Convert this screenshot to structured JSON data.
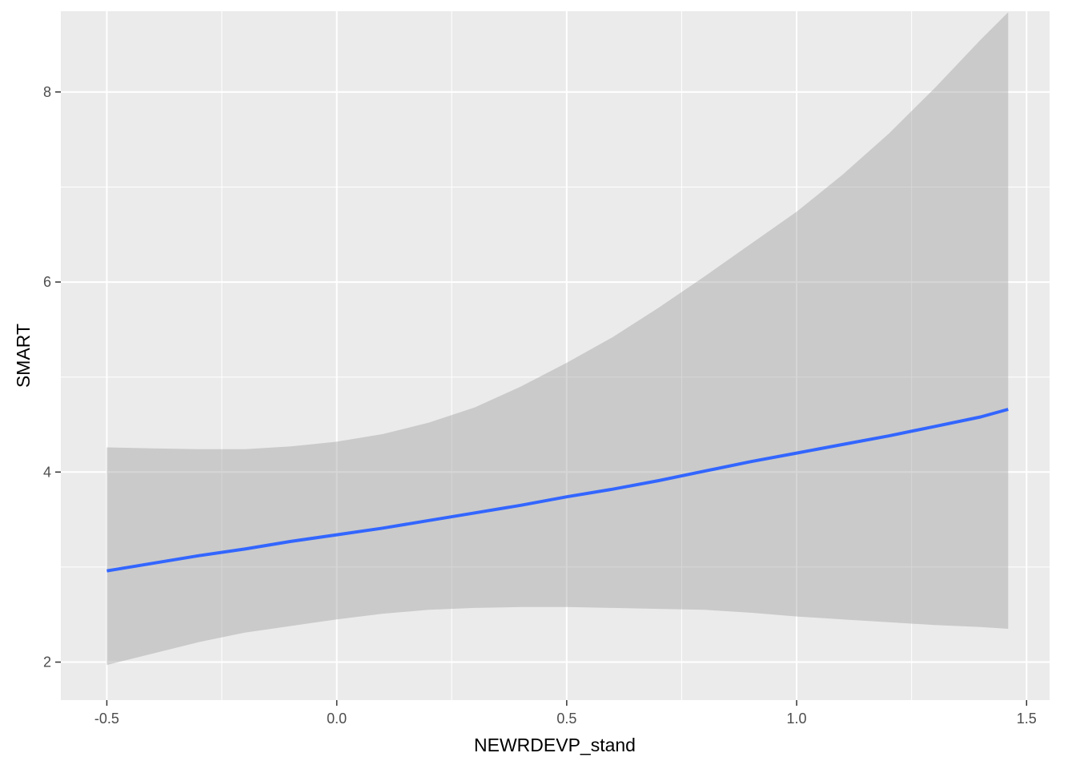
{
  "chart_data": {
    "type": "line",
    "xlabel": "NEWRDEVP_stand",
    "ylabel": "SMART",
    "xlim": [
      -0.6,
      1.55
    ],
    "ylim": [
      1.6,
      8.85
    ],
    "x_ticks": [
      -0.5,
      0.0,
      0.5,
      1.0,
      1.5
    ],
    "x_tick_labels": [
      "-0.5",
      "0.0",
      "0.5",
      "1.0",
      "1.5"
    ],
    "y_ticks": [
      2,
      4,
      6,
      8
    ],
    "y_tick_labels": [
      "2",
      "4",
      "6",
      "8"
    ],
    "grid": true,
    "colors": {
      "panel_background": "#ebebeb",
      "grid_major": "#ffffff",
      "line": "#3366ff",
      "ribbon": "#999999"
    },
    "series": [
      {
        "x": [
          -0.5,
          -0.4,
          -0.3,
          -0.2,
          -0.1,
          0.0,
          0.1,
          0.2,
          0.3,
          0.4,
          0.5,
          0.6,
          0.7,
          0.8,
          0.9,
          1.0,
          1.1,
          1.2,
          1.3,
          1.4,
          1.46
        ],
        "y": [
          2.96,
          3.04,
          3.12,
          3.19,
          3.27,
          3.34,
          3.41,
          3.49,
          3.57,
          3.65,
          3.74,
          3.82,
          3.91,
          4.01,
          4.11,
          4.2,
          4.29,
          4.38,
          4.48,
          4.58,
          4.66
        ],
        "lower": [
          1.97,
          2.09,
          2.21,
          2.31,
          2.38,
          2.45,
          2.51,
          2.55,
          2.57,
          2.58,
          2.58,
          2.57,
          2.56,
          2.55,
          2.52,
          2.48,
          2.45,
          2.42,
          2.39,
          2.37,
          2.35
        ],
        "upper": [
          4.26,
          4.25,
          4.24,
          4.24,
          4.27,
          4.32,
          4.4,
          4.52,
          4.68,
          4.9,
          5.15,
          5.42,
          5.73,
          6.06,
          6.4,
          6.74,
          7.13,
          7.56,
          8.04,
          8.55,
          8.84
        ]
      }
    ]
  }
}
